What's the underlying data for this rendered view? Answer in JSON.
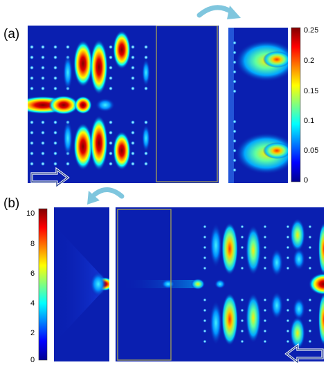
{
  "panel_a": {
    "label": "(a)",
    "colorbar_ticks": [
      "0.25",
      "0.2",
      "0.15",
      "0.1",
      "0.05",
      "0"
    ]
  },
  "panel_b": {
    "label": "(b)",
    "colorbar_ticks": [
      "10",
      "8",
      "6",
      "4",
      "2",
      "0"
    ]
  },
  "colormap": "jet",
  "colors": {
    "background_field": "#0a1fb0",
    "highlight_box": "#9c9a5a",
    "arrow_outline": "#1f3a8a",
    "curved_arrow": "#7fc6de"
  },
  "icons": [
    "right-arrow-icon",
    "left-arrow-icon",
    "curved-arrow-icon"
  ]
}
